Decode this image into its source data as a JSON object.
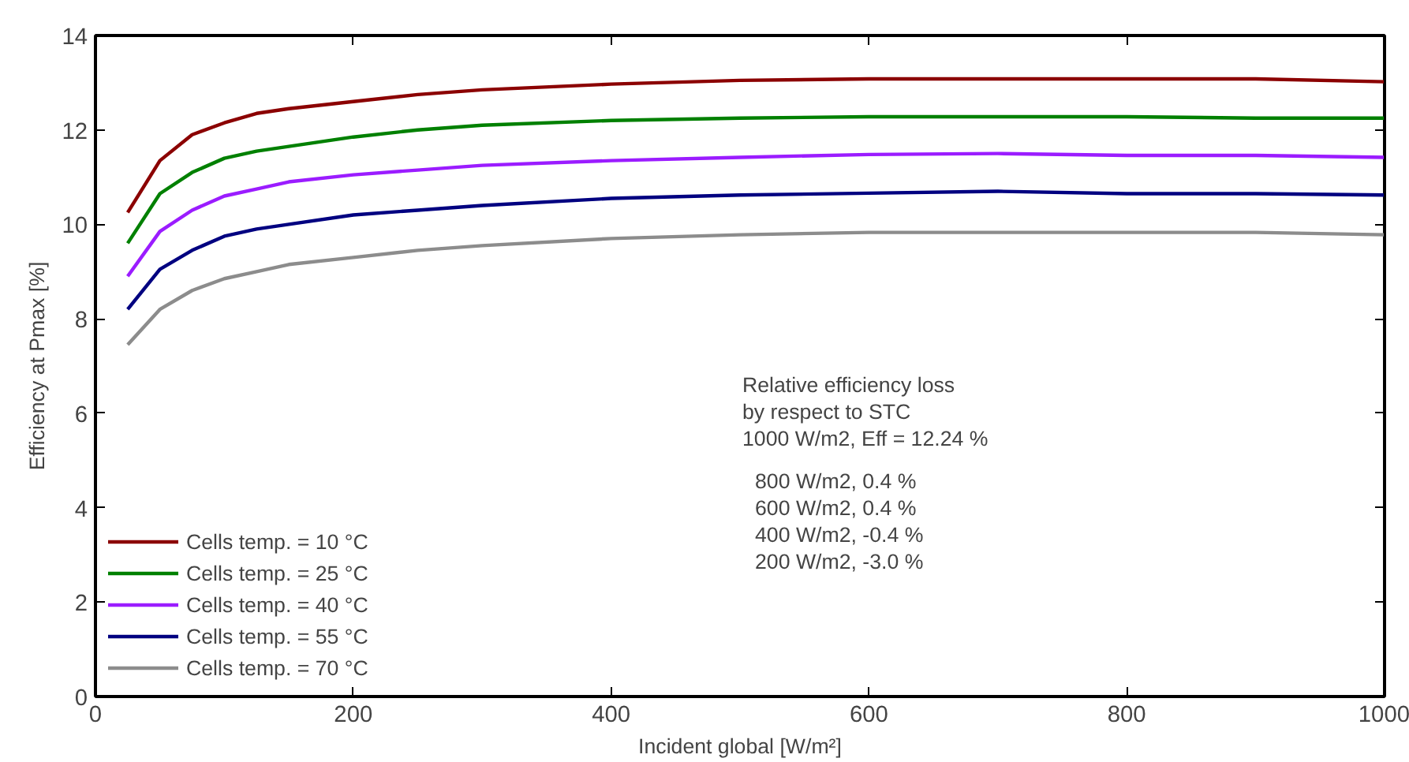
{
  "chart_data": {
    "type": "line",
    "xlabel": "Incident global [W/m²]",
    "ylabel": "Efficiency at Pmax [%]",
    "x": [
      25,
      50,
      75,
      100,
      125,
      150,
      200,
      250,
      300,
      400,
      500,
      600,
      700,
      800,
      900,
      1000
    ],
    "series": [
      {
        "name": "Cells temp. = 10 °C",
        "color": "#8b0000",
        "values": [
          10.25,
          11.35,
          11.9,
          12.15,
          12.35,
          12.45,
          12.6,
          12.75,
          12.85,
          12.97,
          13.05,
          13.08,
          13.08,
          13.08,
          13.08,
          13.02
        ]
      },
      {
        "name": "Cells temp. = 25 °C",
        "color": "#008000",
        "values": [
          9.6,
          10.65,
          11.1,
          11.4,
          11.55,
          11.65,
          11.85,
          12.0,
          12.1,
          12.2,
          12.25,
          12.28,
          12.28,
          12.28,
          12.25,
          12.25
        ]
      },
      {
        "name": "Cells temp. = 40 °C",
        "color": "#9b1cff",
        "values": [
          8.9,
          9.85,
          10.3,
          10.6,
          10.75,
          10.9,
          11.05,
          11.15,
          11.25,
          11.35,
          11.42,
          11.48,
          11.5,
          11.46,
          11.46,
          11.42
        ]
      },
      {
        "name": "Cells temp. = 55 °C",
        "color": "#000080",
        "values": [
          8.2,
          9.05,
          9.45,
          9.75,
          9.9,
          10.0,
          10.2,
          10.3,
          10.4,
          10.55,
          10.62,
          10.66,
          10.7,
          10.65,
          10.65,
          10.62
        ]
      },
      {
        "name": "Cells temp. = 70 °C",
        "color": "#8c8c8c",
        "values": [
          7.45,
          8.2,
          8.6,
          8.85,
          9.0,
          9.15,
          9.3,
          9.45,
          9.55,
          9.7,
          9.78,
          9.83,
          9.83,
          9.83,
          9.83,
          9.78
        ]
      }
    ],
    "xlim": [
      0,
      1000
    ],
    "xticks": [
      0,
      200,
      400,
      600,
      800,
      1000
    ],
    "ylim": [
      0,
      14
    ],
    "yticks": [
      0,
      2,
      4,
      6,
      8,
      10,
      12,
      14
    ],
    "grid": false,
    "legend": "bottom left",
    "marker": "none",
    "line_style": "solid",
    "annotations": [
      "Relative efficiency loss",
      "by respect to STC",
      "1000 W/m2, Eff = 12.24 %",
      "800 W/m2,  0.4 %",
      "600 W/m2,  0.4 %",
      "400 W/m2,  -0.4 %",
      "200 W/m2,  -3.0 %"
    ]
  }
}
